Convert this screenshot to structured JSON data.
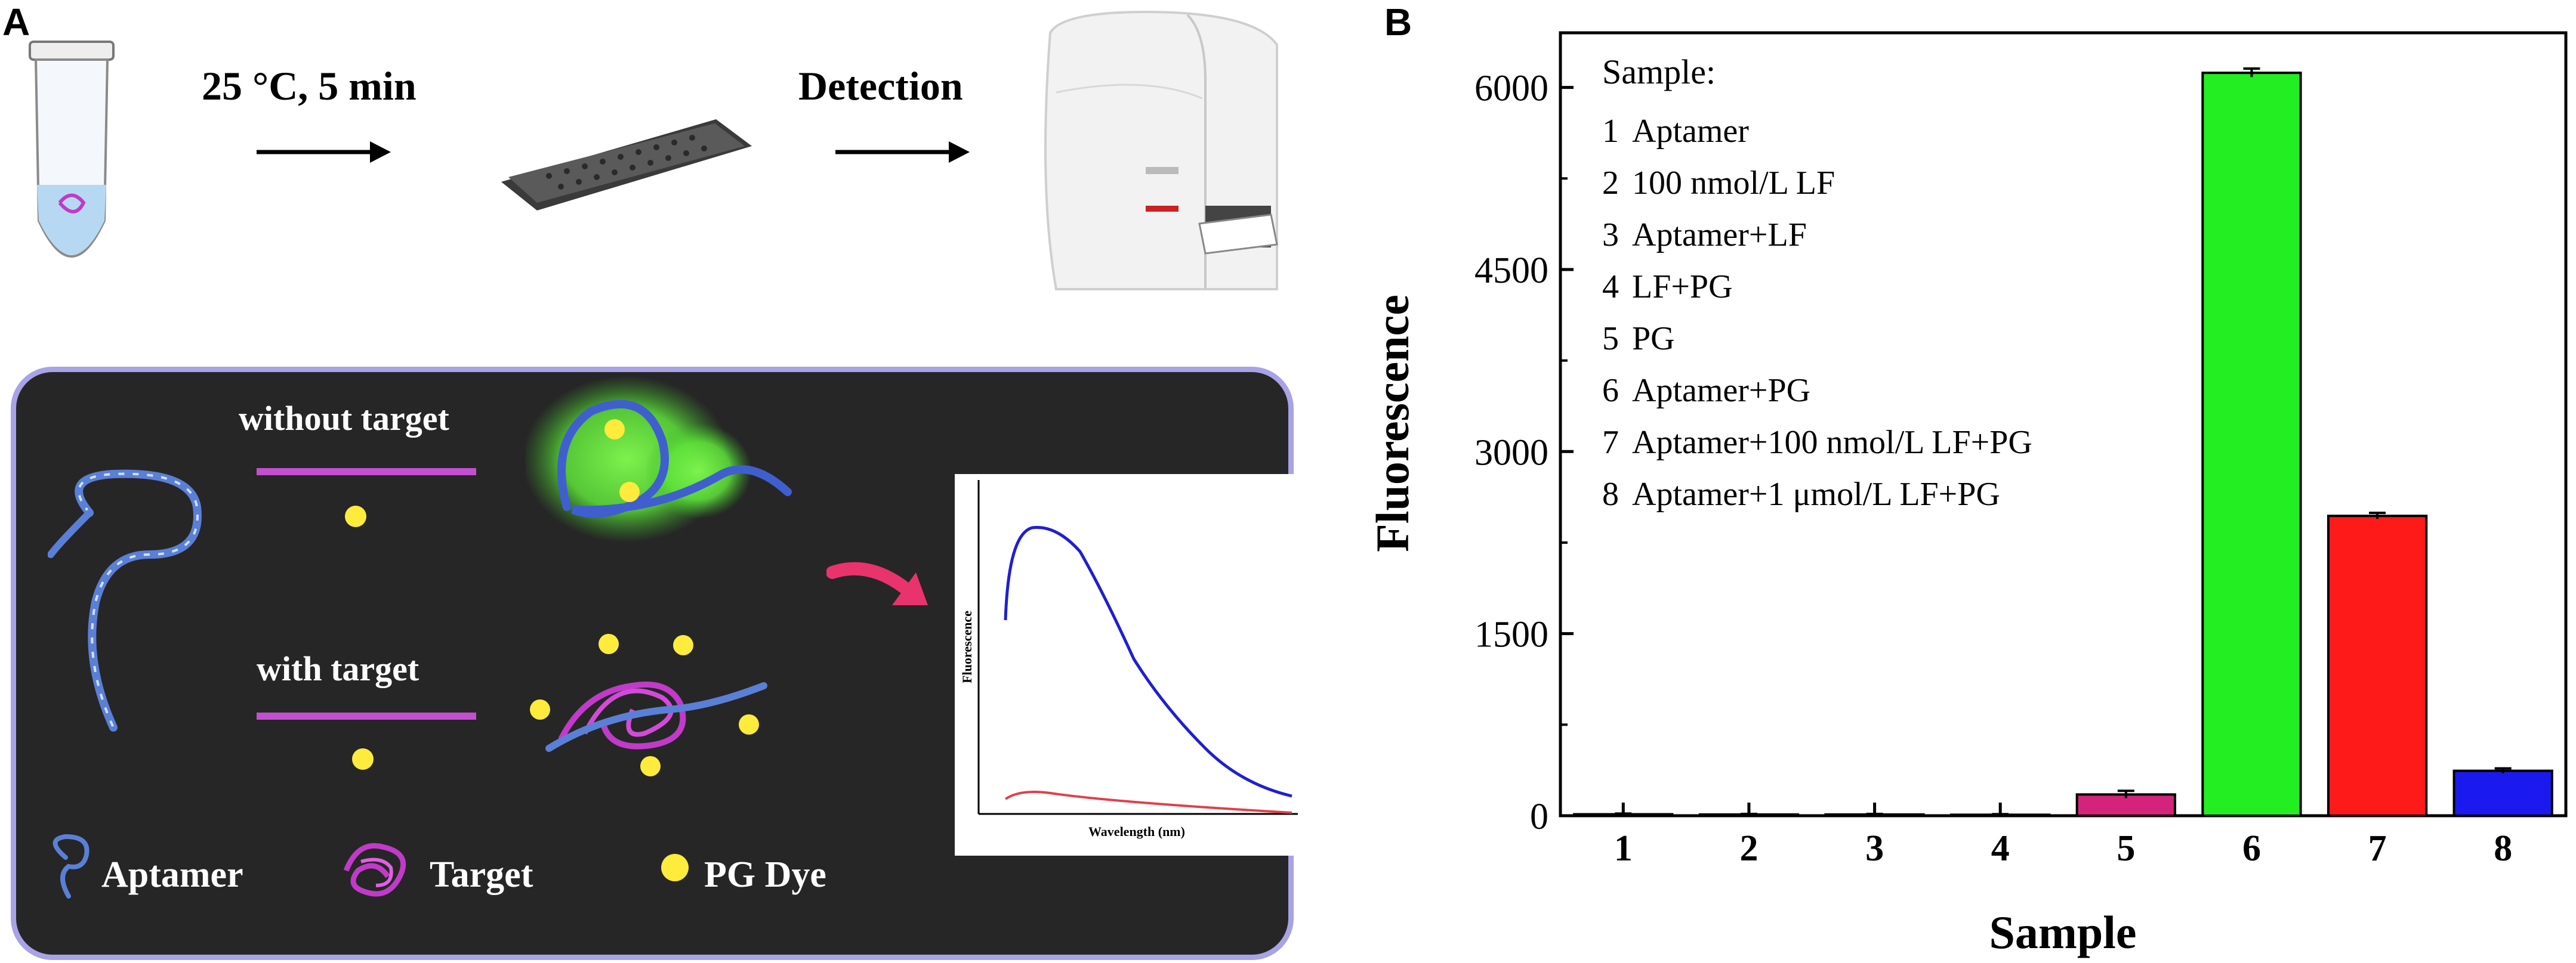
{
  "panel_a": {
    "letter": "A",
    "step1_label": "25 °C, 5 min",
    "step2_label": "Detection",
    "conditions": {
      "without_target": "without target",
      "with_target": "with target"
    },
    "legend": {
      "aptamer": "Aptamer",
      "target": "Target",
      "dye": "PG Dye"
    },
    "inset": {
      "ylabel": "Fluorescence",
      "xlabel": "Wavelength (nm)"
    },
    "colors": {
      "panel_bg": "#262626",
      "panel_border": "#a8a2e6",
      "arrow_bar": "#c24fd0",
      "dye": "#ffeb3b",
      "glow": "#5fe33a",
      "aptamer": "#5a7fd6",
      "target": "#c13ac9",
      "curve_high": "#1f1fd0",
      "curve_low": "#e0404a"
    }
  },
  "panel_b": {
    "letter": "B",
    "legend_title": "Sample:",
    "legend_items": [
      {
        "num": "1",
        "label": "Aptamer"
      },
      {
        "num": "2",
        "label": "100 nmol/L LF"
      },
      {
        "num": "3",
        "label": "Aptamer+LF"
      },
      {
        "num": "4",
        "label": "LF+PG"
      },
      {
        "num": "5",
        "label": "PG"
      },
      {
        "num": "6",
        "label": "Aptamer+PG"
      },
      {
        "num": "7",
        "label": "Aptamer+100 nmol/L LF+PG"
      },
      {
        "num": "8",
        "label": "Aptamer+1 μmol/L LF+PG"
      }
    ]
  },
  "chart_data": {
    "type": "bar",
    "xlabel": "Sample",
    "ylabel": "Fluorescence",
    "categories": [
      "1",
      "2",
      "3",
      "4",
      "5",
      "6",
      "7",
      "8"
    ],
    "values": [
      12,
      10,
      10,
      8,
      175,
      6120,
      2470,
      370
    ],
    "errors": [
      6,
      5,
      5,
      5,
      30,
      35,
      25,
      20
    ],
    "colors": [
      "#d4237a",
      "#d4237a",
      "#d4237a",
      "#d4237a",
      "#d4237a",
      "#22ee22",
      "#ff1a1a",
      "#1a1aee"
    ],
    "yticks": [
      0,
      1500,
      3000,
      4500,
      6000
    ],
    "ylim": [
      0,
      6450
    ],
    "grid": false
  }
}
